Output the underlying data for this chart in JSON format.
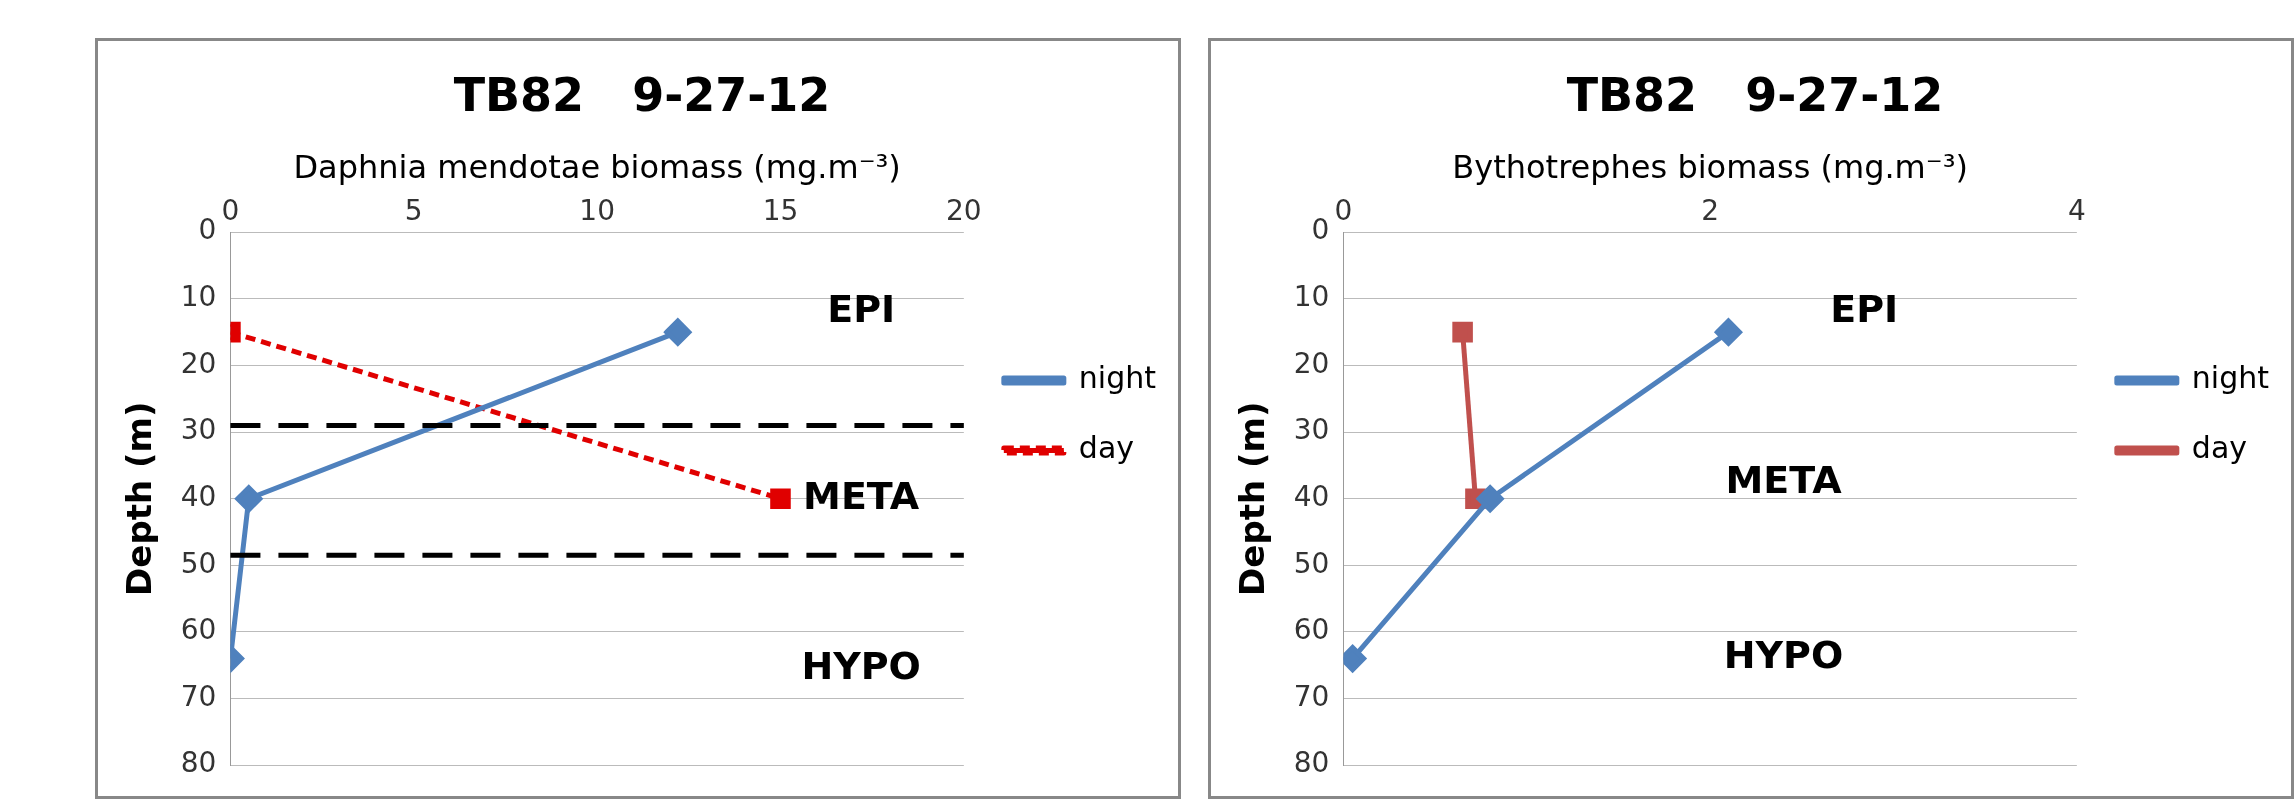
{
  "chart_data": [
    {
      "type": "line",
      "title": "TB82   9-27-12",
      "xlabel": "Daphnia mendotae biomass (mg.m⁻³)",
      "ylabel": "Depth (m)",
      "xlim": [
        0,
        20
      ],
      "xticks": [
        0,
        5,
        10,
        15,
        20
      ],
      "ylim": [
        80,
        0
      ],
      "yticks": [
        0,
        10,
        20,
        30,
        40,
        50,
        60,
        70,
        80
      ],
      "grid": "y",
      "legend": "right",
      "series": [
        {
          "name": "night",
          "color": "#4f81bd",
          "x": [
            12.2,
            0.5,
            0
          ],
          "values": [
            15,
            40,
            64
          ],
          "marker": "diamond",
          "line_style": "solid"
        },
        {
          "name": "day",
          "color": "#e00000",
          "x": [
            0,
            15
          ],
          "values": [
            15,
            40
          ],
          "marker": "square",
          "line_style": "dashed"
        }
      ],
      "ref_lines": [
        {
          "axis": "y",
          "value": 29,
          "color": "#000000",
          "line_style": "dashed"
        },
        {
          "axis": "y",
          "value": 48.5,
          "color": "#000000",
          "line_style": "dashed"
        }
      ],
      "annotations": [
        "EPI",
        "META",
        "HYPO"
      ]
    },
    {
      "type": "line",
      "title": "TB82   9-27-12",
      "xlabel": "Bythotrephes biomass (mg.m⁻³)",
      "ylabel": "Depth (m)",
      "xlim": [
        0,
        4
      ],
      "xticks": [
        0,
        2,
        4
      ],
      "ylim": [
        80,
        0
      ],
      "yticks": [
        0,
        10,
        20,
        30,
        40,
        50,
        60,
        70,
        80
      ],
      "grid": "y",
      "legend": "right",
      "series": [
        {
          "name": "night",
          "color": "#4f81bd",
          "x": [
            2.1,
            0.8,
            0.05
          ],
          "values": [
            15,
            40,
            64
          ],
          "marker": "diamond",
          "line_style": "solid"
        },
        {
          "name": "day",
          "color": "#c0504d",
          "x": [
            0.65,
            0.72
          ],
          "values": [
            15,
            40
          ],
          "marker": "square",
          "line_style": "solid"
        }
      ],
      "annotations": [
        "EPI",
        "META",
        "HYPO"
      ]
    }
  ]
}
